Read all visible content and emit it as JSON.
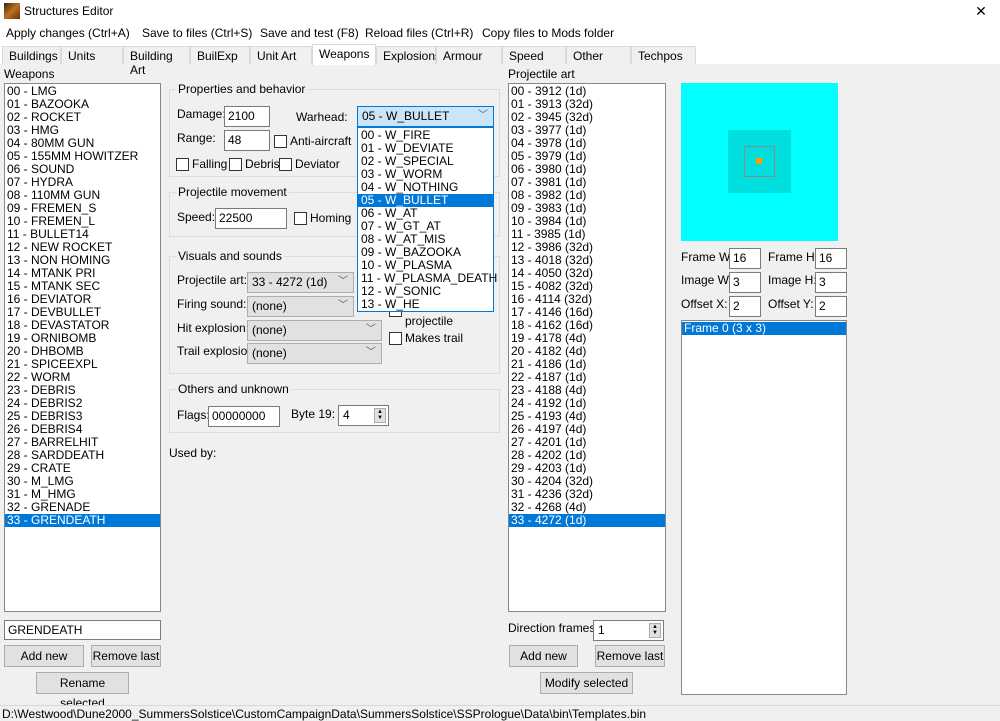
{
  "window": {
    "title": "Structures Editor",
    "close": "✕"
  },
  "menu": [
    "Apply changes (Ctrl+A)",
    "Save to files (Ctrl+S)",
    "Save and test (F8)",
    "Reload files (Ctrl+R)",
    "Copy files to Mods folder"
  ],
  "tabs": [
    "Buildings",
    "Units",
    "Building Art",
    "BuilExp",
    "Unit Art",
    "Weapons",
    "Explosions",
    "Armour",
    "Speed",
    "Other",
    "Techpos"
  ],
  "active_tab": "Weapons",
  "weapons": {
    "label": "Weapons",
    "items": [
      "00 - LMG",
      "01 - BAZOOKA",
      "02 - ROCKET",
      "03 - HMG",
      "04 - 80MM GUN",
      "05 - 155MM HOWITZER",
      "06 - SOUND",
      "07 - HYDRA",
      "08 - 110MM GUN",
      "09 - FREMEN_S",
      "10 - FREMEN_L",
      "11 - BULLET14",
      "12 - NEW ROCKET",
      "13 - NON HOMING",
      "14 - MTANK PRI",
      "15 - MTANK SEC",
      "16 - DEVIATOR",
      "17 - DEVBULLET",
      "18 - DEVASTATOR",
      "19 - ORNIBOMB",
      "20 - DHBOMB",
      "21 - SPICEEXPL",
      "22 - WORM",
      "23 - DEBRIS",
      "24 - DEBRIS2",
      "25 - DEBRIS3",
      "26 - DEBRIS4",
      "27 - BARRELHIT",
      "28 - SARDDEATH",
      "29 - CRATE",
      "30 - M_LMG",
      "31 - M_HMG",
      "32 - GRENADE",
      "33 - GRENDEATH"
    ],
    "selected_index": 33,
    "name_value": "GRENDEATH",
    "add_new": "Add new",
    "remove_last": "Remove last",
    "rename_selected": "Rename selected"
  },
  "properties": {
    "title": "Properties and behavior",
    "damage_label": "Damage:",
    "damage": "2100",
    "range_label": "Range:",
    "range": "48",
    "warhead_label": "Warhead:",
    "warhead": "05 - W_BULLET",
    "anti_aircraft": "Anti-aircraft",
    "falling": "Falling",
    "debris": "Debris",
    "deviator": "Deviator"
  },
  "warhead_options": [
    "00 - W_FIRE",
    "01 - W_DEVIATE",
    "02 - W_SPECIAL",
    "03 - W_WORM",
    "04 - W_NOTHING",
    "05 - W_BULLET",
    "06 - W_AT",
    "07 - W_GT_AT",
    "08 - W_AT_MIS",
    "09 - W_BAZOOKA",
    "10 - W_PLASMA",
    "11 - W_PLASMA_DEATH",
    "12 - W_SONIC",
    "13 - W_HE"
  ],
  "warhead_selected_index": 5,
  "movement": {
    "title": "Projectile movement",
    "speed_label": "Speed:",
    "speed": "22500",
    "homing": "Homing"
  },
  "visuals": {
    "title": "Visuals and sounds",
    "projectile_art_label": "Projectile art:",
    "projectile_art": "33 - 4272 (1d)",
    "firing_sound_label": "Firing sound:",
    "firing_sound": "(none)",
    "hit_explosion_label": "Hit explosion:",
    "hit_explosion": "(none)",
    "trail_explosion_label": "Trail explosion:",
    "trail_explosion": "(none)",
    "projectile_partial": "projectile",
    "makes_trail": "Makes trail"
  },
  "others": {
    "title": "Others and unknown",
    "flags_label": "Flags:",
    "flags": "00000000",
    "byte19_label": "Byte 19:",
    "byte19": "4"
  },
  "used_by_label": "Used by:",
  "projectile_art": {
    "label": "Projectile art",
    "items": [
      "00 - 3912 (1d)",
      "01 - 3913 (32d)",
      "02 - 3945 (32d)",
      "03 - 3977 (1d)",
      "04 - 3978 (1d)",
      "05 - 3979 (1d)",
      "06 - 3980 (1d)",
      "07 - 3981 (1d)",
      "08 - 3982 (1d)",
      "09 - 3983 (1d)",
      "10 - 3984 (1d)",
      "11 - 3985 (1d)",
      "12 - 3986 (32d)",
      "13 - 4018 (32d)",
      "14 - 4050 (32d)",
      "15 - 4082 (32d)",
      "16 - 4114 (32d)",
      "17 - 4146 (16d)",
      "18 - 4162 (16d)",
      "19 - 4178 (4d)",
      "20 - 4182 (4d)",
      "21 - 4186 (1d)",
      "22 - 4187 (1d)",
      "23 - 4188 (4d)",
      "24 - 4192 (1d)",
      "25 - 4193 (4d)",
      "26 - 4197 (4d)",
      "27 - 4201 (1d)",
      "28 - 4202 (1d)",
      "29 - 4203 (1d)",
      "30 - 4204 (32d)",
      "31 - 4236 (32d)",
      "32 - 4268 (4d)",
      "33 - 4272 (1d)"
    ],
    "selected_index": 33,
    "direction_frames_label": "Direction frames:",
    "direction_frames": "1",
    "add_new": "Add new",
    "remove_last": "Remove last",
    "modify_selected": "Modify selected"
  },
  "frame": {
    "frame_w_label": "Frame W:",
    "frame_w": "16",
    "frame_h_label": "Frame H:",
    "frame_h": "16",
    "image_w_label": "Image W:",
    "image_w": "3",
    "image_h_label": "Image H:",
    "image_h": "3",
    "offset_x_label": "Offset X:",
    "offset_x": "2",
    "offset_y_label": "Offset Y:",
    "offset_y": "2",
    "frames": [
      "Frame 0 (3 x 3)"
    ],
    "preview_colors": {
      "background": "#00ffff",
      "frame": "#00dede",
      "outline": "#8a8a8a",
      "pixel": "#f5a000"
    }
  },
  "status": "D:\\Westwood\\Dune2000_SummersSolstice\\CustomCampaignData\\SummersSolstice\\SSPrologue\\Data\\bin\\Templates.bin"
}
